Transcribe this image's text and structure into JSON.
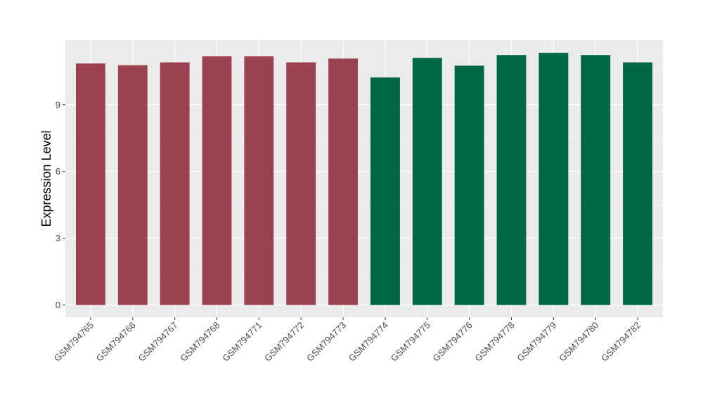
{
  "chart_data": {
    "type": "bar",
    "title": "",
    "xlabel": "",
    "ylabel": "Expression Level",
    "ylim": [
      -0.55,
      11.9
    ],
    "yticks": [
      0,
      3,
      6,
      9
    ],
    "grid": true,
    "legend": "none",
    "categories": [
      "GSM794765",
      "GSM794766",
      "GSM794767",
      "GSM794768",
      "GSM794771",
      "GSM794772",
      "GSM794773",
      "GSM794774",
      "GSM794775",
      "GSM794776",
      "GSM794778",
      "GSM794779",
      "GSM794780",
      "GSM794782"
    ],
    "values": [
      10.85,
      10.77,
      10.9,
      11.17,
      11.17,
      10.9,
      11.07,
      10.22,
      11.1,
      10.75,
      11.23,
      11.33,
      11.23,
      10.9
    ],
    "bar_colors": [
      "#9b4250",
      "#9b4250",
      "#9b4250",
      "#9b4250",
      "#9b4250",
      "#9b4250",
      "#9b4250",
      "#006745",
      "#006745",
      "#006745",
      "#006745",
      "#006745",
      "#006745",
      "#006745"
    ],
    "panel_background": "#ebebeb"
  }
}
